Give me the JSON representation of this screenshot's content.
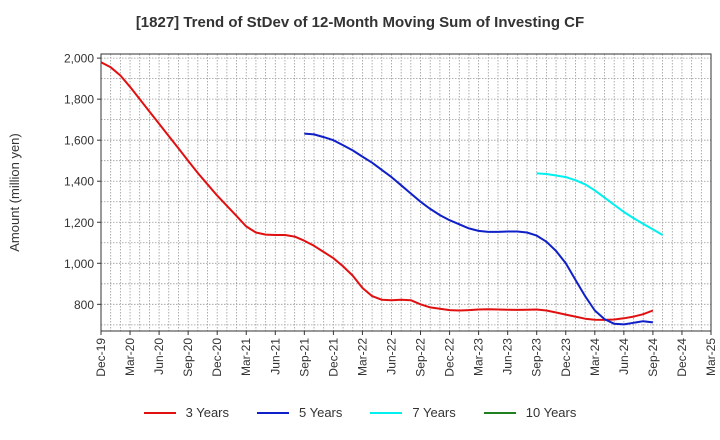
{
  "chart_data": {
    "type": "line",
    "title": "[1827]  Trend of StDev of 12-Month Moving Sum of Investing CF",
    "ylabel": "Amount (million yen)",
    "xlabel": "",
    "ylim": [
      670,
      2020
    ],
    "y_ticks": [
      "800",
      "1,000",
      "1,200",
      "1,400",
      "1,600",
      "1,800",
      "2,000"
    ],
    "y_tick_values": [
      800,
      1000,
      1200,
      1400,
      1600,
      1800,
      2000
    ],
    "x_ticks": [
      "Dec-19",
      "Mar-20",
      "Jun-20",
      "Sep-20",
      "Dec-20",
      "Mar-21",
      "Jun-21",
      "Sep-21",
      "Dec-21",
      "Mar-22",
      "Jun-22",
      "Sep-22",
      "Dec-22",
      "Mar-23",
      "Jun-23",
      "Sep-23",
      "Dec-23",
      "Mar-24",
      "Jun-24",
      "Sep-24",
      "Dec-24",
      "Mar-25"
    ],
    "x_start": "2019-12",
    "x_end": "2025-03",
    "grid": true,
    "legend_position": "bottom",
    "series": [
      {
        "name": "3 Years",
        "color": "#e01010",
        "points": [
          [
            "2019-12",
            1980
          ],
          [
            "2020-01",
            1955
          ],
          [
            "2020-02",
            1915
          ],
          [
            "2020-03",
            1860
          ],
          [
            "2020-04",
            1800
          ],
          [
            "2020-05",
            1740
          ],
          [
            "2020-06",
            1680
          ],
          [
            "2020-07",
            1620
          ],
          [
            "2020-08",
            1560
          ],
          [
            "2020-09",
            1500
          ],
          [
            "2020-10",
            1440
          ],
          [
            "2020-11",
            1385
          ],
          [
            "2020-12",
            1330
          ],
          [
            "2021-01",
            1280
          ],
          [
            "2021-02",
            1230
          ],
          [
            "2021-03",
            1180
          ],
          [
            "2021-04",
            1150
          ],
          [
            "2021-05",
            1140
          ],
          [
            "2021-06",
            1138
          ],
          [
            "2021-07",
            1138
          ],
          [
            "2021-08",
            1130
          ],
          [
            "2021-09",
            1110
          ],
          [
            "2021-10",
            1085
          ],
          [
            "2021-11",
            1055
          ],
          [
            "2021-12",
            1025
          ],
          [
            "2022-01",
            985
          ],
          [
            "2022-02",
            940
          ],
          [
            "2022-03",
            880
          ],
          [
            "2022-04",
            840
          ],
          [
            "2022-05",
            822
          ],
          [
            "2022-06",
            820
          ],
          [
            "2022-07",
            822
          ],
          [
            "2022-08",
            820
          ],
          [
            "2022-09",
            800
          ],
          [
            "2022-10",
            785
          ],
          [
            "2022-11",
            778
          ],
          [
            "2022-12",
            772
          ],
          [
            "2023-01",
            770
          ],
          [
            "2023-02",
            772
          ],
          [
            "2023-03",
            775
          ],
          [
            "2023-04",
            776
          ],
          [
            "2023-05",
            775
          ],
          [
            "2023-06",
            774
          ],
          [
            "2023-07",
            773
          ],
          [
            "2023-08",
            774
          ],
          [
            "2023-09",
            775
          ],
          [
            "2023-10",
            770
          ],
          [
            "2023-11",
            760
          ],
          [
            "2023-12",
            750
          ],
          [
            "2024-01",
            740
          ],
          [
            "2024-02",
            730
          ],
          [
            "2024-03",
            725
          ],
          [
            "2024-04",
            724
          ],
          [
            "2024-05",
            726
          ],
          [
            "2024-06",
            732
          ],
          [
            "2024-07",
            740
          ],
          [
            "2024-08",
            752
          ],
          [
            "2024-09",
            770
          ]
        ]
      },
      {
        "name": "5 Years",
        "color": "#1020c8",
        "points": [
          [
            "2021-09",
            1632
          ],
          [
            "2021-10",
            1628
          ],
          [
            "2021-11",
            1615
          ],
          [
            "2021-12",
            1600
          ],
          [
            "2022-01",
            1575
          ],
          [
            "2022-02",
            1550
          ],
          [
            "2022-03",
            1520
          ],
          [
            "2022-04",
            1490
          ],
          [
            "2022-05",
            1455
          ],
          [
            "2022-06",
            1420
          ],
          [
            "2022-07",
            1380
          ],
          [
            "2022-08",
            1340
          ],
          [
            "2022-09",
            1300
          ],
          [
            "2022-10",
            1265
          ],
          [
            "2022-11",
            1235
          ],
          [
            "2022-12",
            1210
          ],
          [
            "2023-01",
            1190
          ],
          [
            "2023-02",
            1170
          ],
          [
            "2023-03",
            1158
          ],
          [
            "2023-04",
            1153
          ],
          [
            "2023-05",
            1153
          ],
          [
            "2023-06",
            1155
          ],
          [
            "2023-07",
            1155
          ],
          [
            "2023-08",
            1150
          ],
          [
            "2023-09",
            1135
          ],
          [
            "2023-10",
            1105
          ],
          [
            "2023-11",
            1060
          ],
          [
            "2023-12",
            1000
          ],
          [
            "2024-01",
            920
          ],
          [
            "2024-02",
            840
          ],
          [
            "2024-03",
            770
          ],
          [
            "2024-04",
            728
          ],
          [
            "2024-05",
            705
          ],
          [
            "2024-06",
            702
          ],
          [
            "2024-07",
            710
          ],
          [
            "2024-08",
            718
          ],
          [
            "2024-09",
            712
          ]
        ]
      },
      {
        "name": "7 Years",
        "color": "#00f0f0",
        "points": [
          [
            "2023-09",
            1438
          ],
          [
            "2023-10",
            1435
          ],
          [
            "2023-11",
            1428
          ],
          [
            "2023-12",
            1420
          ],
          [
            "2024-01",
            1405
          ],
          [
            "2024-02",
            1385
          ],
          [
            "2024-03",
            1355
          ],
          [
            "2024-04",
            1320
          ],
          [
            "2024-05",
            1285
          ],
          [
            "2024-06",
            1250
          ],
          [
            "2024-07",
            1220
          ],
          [
            "2024-08",
            1192
          ],
          [
            "2024-09",
            1165
          ],
          [
            "2024-10",
            1138
          ]
        ]
      },
      {
        "name": "10 Years",
        "color": "#208020",
        "points": []
      }
    ]
  }
}
